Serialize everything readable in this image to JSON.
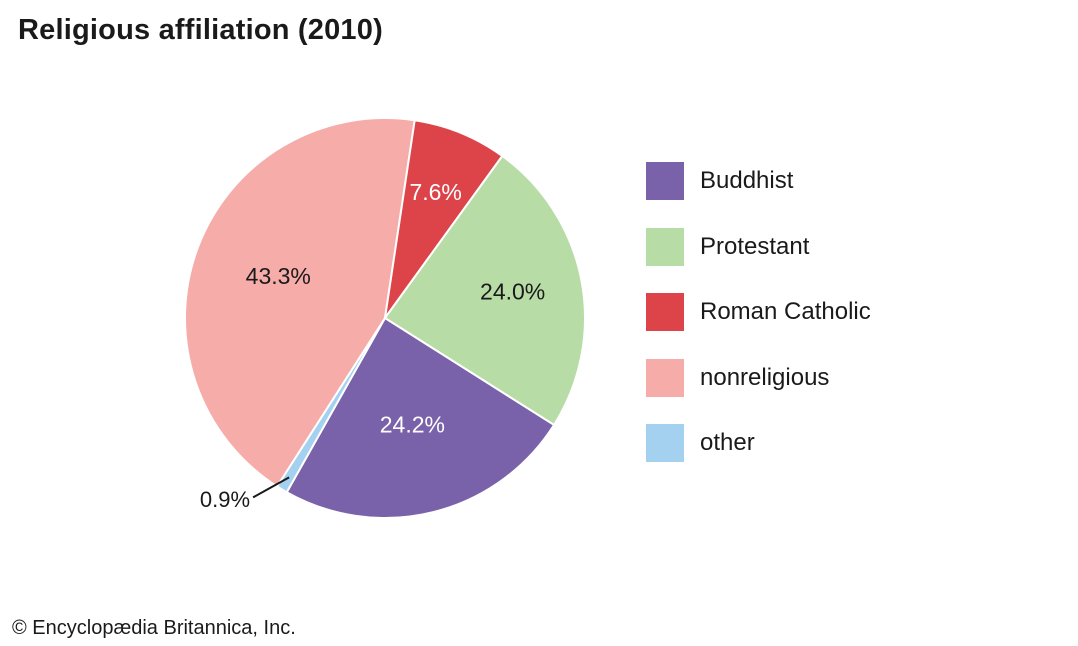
{
  "title": "Religious affiliation (2010)",
  "footer": "© Encyclopædia Britannica, Inc.",
  "chart_data": {
    "type": "pie",
    "title": "Religious affiliation (2010)",
    "legend_position": "right",
    "start_at": "Buddhist begins at the center-right (roughly 4 o'clock), slices proceed clockwise",
    "slices": [
      {
        "label": "Buddhist",
        "value": 24.2,
        "value_label": "24.2%",
        "color": "#7a62aa",
        "label_color": "#ffffff"
      },
      {
        "label": "other",
        "value": 0.9,
        "value_label": "0.9%",
        "color": "#a4d1ef",
        "label_color": "#1a1a1a"
      },
      {
        "label": "nonreligious",
        "value": 43.3,
        "value_label": "43.3%",
        "color": "#f6aca8",
        "label_color": "#1a1a1a"
      },
      {
        "label": "Roman Catholic",
        "value": 7.6,
        "value_label": "7.6%",
        "color": "#dc4449",
        "label_color": "#ffffff"
      },
      {
        "label": "Protestant",
        "value": 24.0,
        "value_label": "24.0%",
        "color": "#b8dca6",
        "label_color": "#1a1a1a"
      }
    ],
    "legend": [
      {
        "label": "Buddhist",
        "color": "#7a62aa"
      },
      {
        "label": "Protestant",
        "color": "#b8dca6"
      },
      {
        "label": "Roman Catholic",
        "color": "#dc4449"
      },
      {
        "label": "nonreligious",
        "color": "#f6aca8"
      },
      {
        "label": "other",
        "color": "#a4d1ef"
      }
    ]
  }
}
